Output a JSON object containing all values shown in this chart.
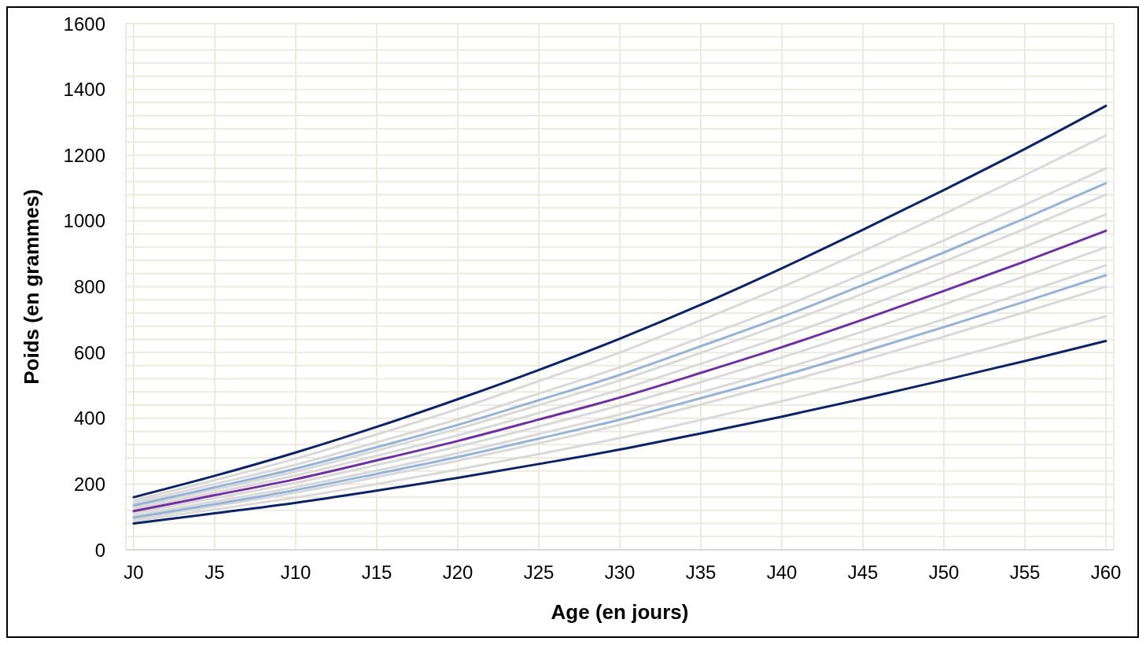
{
  "chart_data": {
    "type": "line",
    "xlabel": "Age (en jours)",
    "ylabel": "Poids (en grammes)",
    "categories": [
      "J0",
      "J5",
      "J10",
      "J15",
      "J20",
      "J25",
      "J30",
      "J35",
      "J40",
      "J45",
      "J50",
      "J55",
      "J60"
    ],
    "ylim": [
      0,
      1600
    ],
    "grid": true,
    "yticks": [
      0,
      {
        "value": 40,
        "label": null
      },
      {
        "value": 80,
        "label": null
      },
      {
        "value": 120,
        "label": null
      },
      {
        "value": 160,
        "label": null
      },
      200,
      {
        "value": 240,
        "label": null
      },
      {
        "value": 280,
        "label": null
      },
      {
        "value": 320,
        "label": null
      },
      {
        "value": 360,
        "label": null
      },
      400,
      {
        "value": 440,
        "label": null
      },
      {
        "value": 480,
        "label": null
      },
      {
        "value": 520,
        "label": null
      },
      {
        "value": 560,
        "label": null
      },
      600,
      {
        "value": 640,
        "label": null
      },
      {
        "value": 680,
        "label": null
      },
      {
        "value": 720,
        "label": null
      },
      {
        "value": 760,
        "label": null
      },
      800,
      {
        "value": 840,
        "label": null
      },
      {
        "value": 880,
        "label": null
      },
      {
        "value": 920,
        "label": null
      },
      {
        "value": 960,
        "label": null
      },
      1000,
      {
        "value": 1040,
        "label": null
      },
      {
        "value": 1080,
        "label": null
      },
      {
        "value": 1120,
        "label": null
      },
      {
        "value": 1160,
        "label": null
      },
      1200,
      {
        "value": 1240,
        "label": null
      },
      {
        "value": 1280,
        "label": null
      },
      {
        "value": 1320,
        "label": null
      },
      {
        "value": 1360,
        "label": null
      },
      1400,
      {
        "value": 1440,
        "label": null
      },
      {
        "value": 1480,
        "label": null
      },
      {
        "value": 1520,
        "label": null
      },
      {
        "value": 1560,
        "label": null
      },
      1600
    ],
    "series": [
      {
        "color": "#d9d9d9",
        "values": [
          150,
          212,
          277,
          351,
          428,
          513,
          600,
          698,
          799,
          908,
          1021,
          1139,
          1260
        ]
      },
      {
        "color": "#d9d9d9",
        "values": [
          143,
          200,
          259,
          327,
          397,
          475,
          555,
          645,
          738,
          838,
          941,
          1049,
          1160
        ]
      },
      {
        "color": "#d9d9d9",
        "values": [
          130,
          183,
          238,
          302,
          368,
          440,
          515,
          599,
          686,
          779,
          876,
          976,
          1080
        ]
      },
      {
        "color": "#d9d9d9",
        "values": [
          124,
          174,
          226,
          286,
          348,
          416,
          487,
          566,
          648,
          736,
          827,
          922,
          1020
        ]
      },
      {
        "color": "#d9d9d9",
        "values": [
          112,
          157,
          204,
          258,
          314,
          375,
          439,
          510,
          585,
          664,
          746,
          832,
          920
        ]
      },
      {
        "color": "#d9d9d9",
        "values": [
          104,
          147,
          191,
          241,
          294,
          352,
          412,
          479,
          549,
          624,
          701,
          782,
          865
        ]
      },
      {
        "color": "#d9d9d9",
        "values": [
          94,
          133,
          174,
          221,
          271,
          324,
          380,
          442,
          507,
          576,
          648,
          723,
          800
        ]
      },
      {
        "color": "#d9d9d9",
        "values": [
          88,
          123,
          159,
          200,
          244,
          291,
          340,
          395,
          452,
          513,
          576,
          642,
          710
        ]
      },
      {
        "color": "#95b3d7",
        "values": [
          135,
          190,
          247,
          312,
          380,
          455,
          532,
          619,
          708,
          805,
          904,
          1008,
          1115
        ]
      },
      {
        "color": "#95b3d7",
        "values": [
          98,
          139,
          182,
          231,
          282,
          338,
          396,
          461,
          529,
          602,
          677,
          755,
          835
        ]
      },
      {
        "color": "#7030a0",
        "values": [
          118,
          166,
          215,
          272,
          331,
          396,
          463,
          538,
          616,
          700,
          787,
          877,
          970
        ]
      },
      {
        "color": "#0b2465",
        "values": [
          160,
          225,
          296,
          374,
          458,
          547,
          642,
          745,
          856,
          973,
          1094,
          1219,
          1350
        ]
      },
      {
        "color": "#0b2465",
        "values": [
          80,
          111,
          143,
          180,
          219,
          261,
          305,
          354,
          405,
          459,
          516,
          574,
          635
        ]
      }
    ]
  }
}
